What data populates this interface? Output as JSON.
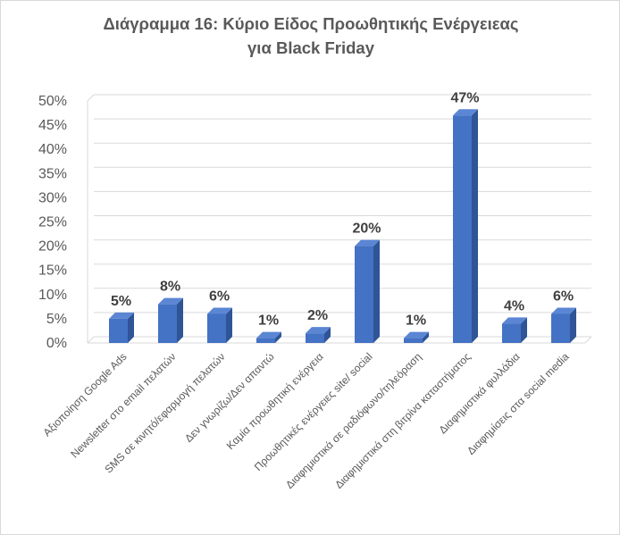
{
  "chart_data": {
    "type": "bar",
    "title_lines": [
      "Διάγραμμα 16: Κύριο Είδος Προωθητικής Ενέργειεας",
      "για Black Friday"
    ],
    "categories": [
      "Αξιοποίηση Google Ads",
      "Newsletter στο email πελατών",
      "SMS σε κινητό/εφαρμογή πελατών",
      "Δεν γνωρίζω/Δεν απαντώ",
      "Καμία προωθητική ενέργεια",
      "Προωθητικές ενέργειες site/ social",
      "Διαφημιστικά σε ραδιόφωνο/τηλεόραση",
      "Διαφημιστικά στη βιτρίνα καταστήματος",
      "Διαφημιστικά φυλλάδια",
      "Διαφημίσεις στα social media"
    ],
    "values": [
      5,
      8,
      6,
      1,
      2,
      20,
      1,
      47,
      4,
      6
    ],
    "data_labels": [
      "5%",
      "8%",
      "6%",
      "1%",
      "2%",
      "20%",
      "1%",
      "47%",
      "4%",
      "6%"
    ],
    "y_ticks": [
      "0%",
      "5%",
      "10%",
      "15%",
      "20%",
      "25%",
      "30%",
      "35%",
      "40%",
      "45%",
      "50%"
    ],
    "ylim": [
      0,
      50
    ],
    "grid": true,
    "bar_color": "#4472c4",
    "bar_side_color": "#2f5597",
    "bar_top_color": "#5b86d4",
    "grid_color": "#d9d9d9"
  }
}
